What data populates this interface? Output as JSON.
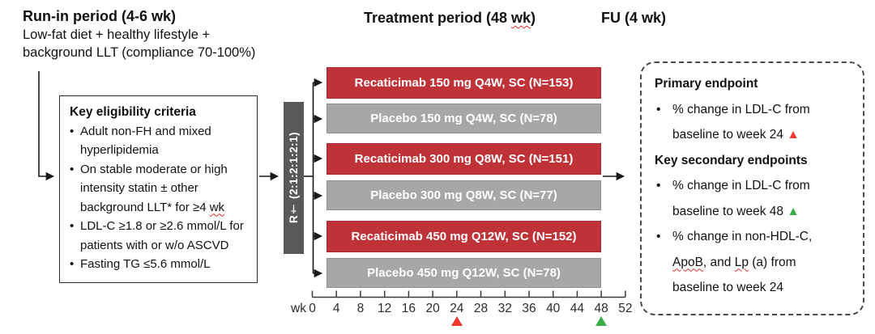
{
  "colors": {
    "drug_bar": "#bf3238",
    "placebo_bar": "#a7a7a9",
    "randomization_bar": "#58595b",
    "marker_red": "#ee3a2d",
    "marker_green": "#3aad49"
  },
  "run_in": {
    "title": "Run-in period (4-6 wk)",
    "line1": "Low-fat diet + healthy lifestyle +",
    "line2": "background LLT (compliance 70-100%)"
  },
  "treatment_header": [
    {
      "t": "Treatment period (48 "
    },
    {
      "t": "wk",
      "w": true
    },
    {
      "t": ")"
    }
  ],
  "fu_header": "FU (4 wk)",
  "eligibility": {
    "title": "Key eligibility criteria",
    "bullets": [
      [
        {
          "t": "Adult non-FH and mixed"
        },
        {
          "br": true
        },
        {
          "t": "hyperlipidemia"
        }
      ],
      [
        {
          "t": "On stable moderate or high"
        },
        {
          "br": true
        },
        {
          "t": "intensity statin ± other"
        },
        {
          "br": true
        },
        {
          "t": "background LLT* for ≥4 "
        },
        {
          "t": "wk",
          "w": true
        }
      ],
      [
        {
          "t": "LDL-C ≥1.8 or ≥2.6 mmol/L for"
        },
        {
          "br": true
        },
        {
          "t": "patients with or w/o ASCVD"
        }
      ],
      [
        {
          "t": "Fasting TG ≤5.6 mmol/L"
        }
      ]
    ]
  },
  "randomization_label": "R† (2:1:2:1:2:1)",
  "arms": [
    {
      "label": "Recaticimab 150 mg Q4W, SC (N=153)",
      "type": "drug"
    },
    {
      "label": "Placebo 150 mg Q4W, SC (N=78)",
      "type": "placebo"
    },
    {
      "label": "Recaticimab 300 mg Q8W, SC (N=151)",
      "type": "drug"
    },
    {
      "label": "Placebo 300 mg Q8W, SC (N=77)",
      "type": "placebo"
    },
    {
      "label": "Recaticimab 450 mg Q12W, SC (N=152)",
      "type": "drug"
    },
    {
      "label": "Placebo 450 mg Q12W, SC (N=78)",
      "type": "placebo"
    }
  ],
  "axis": {
    "unit_label": "wk",
    "ticks": [
      "0",
      "4",
      "8",
      "12",
      "16",
      "20",
      "24",
      "28",
      "32",
      "36",
      "40",
      "44",
      "48",
      "52"
    ],
    "markers": [
      {
        "at_tick": "24",
        "color": "#ee3a2d"
      },
      {
        "at_tick": "48",
        "color": "#3aad49"
      }
    ]
  },
  "endpoints": {
    "primary_title": "Primary endpoint",
    "primary_bullets": [
      [
        {
          "t": "% change in LDL-C from"
        },
        {
          "br": true
        },
        {
          "t": "baseline to week 24 "
        },
        {
          "t": "▲",
          "c": "#ee3a2d"
        }
      ]
    ],
    "secondary_title": "Key secondary endpoints",
    "secondary_bullets": [
      [
        {
          "t": "% change in LDL-C from"
        },
        {
          "br": true
        },
        {
          "t": "baseline to week 48 "
        },
        {
          "t": "▲",
          "c": "#3aad49"
        }
      ],
      [
        {
          "t": "% change in non-HDL-C,"
        },
        {
          "br": true
        },
        {
          "t": "ApoB",
          "w": true
        },
        {
          "t": ", and "
        },
        {
          "t": "Lp",
          "w": true
        },
        {
          "t": " (a) from"
        },
        {
          "br": true
        },
        {
          "t": "baseline to week 24"
        }
      ]
    ]
  }
}
